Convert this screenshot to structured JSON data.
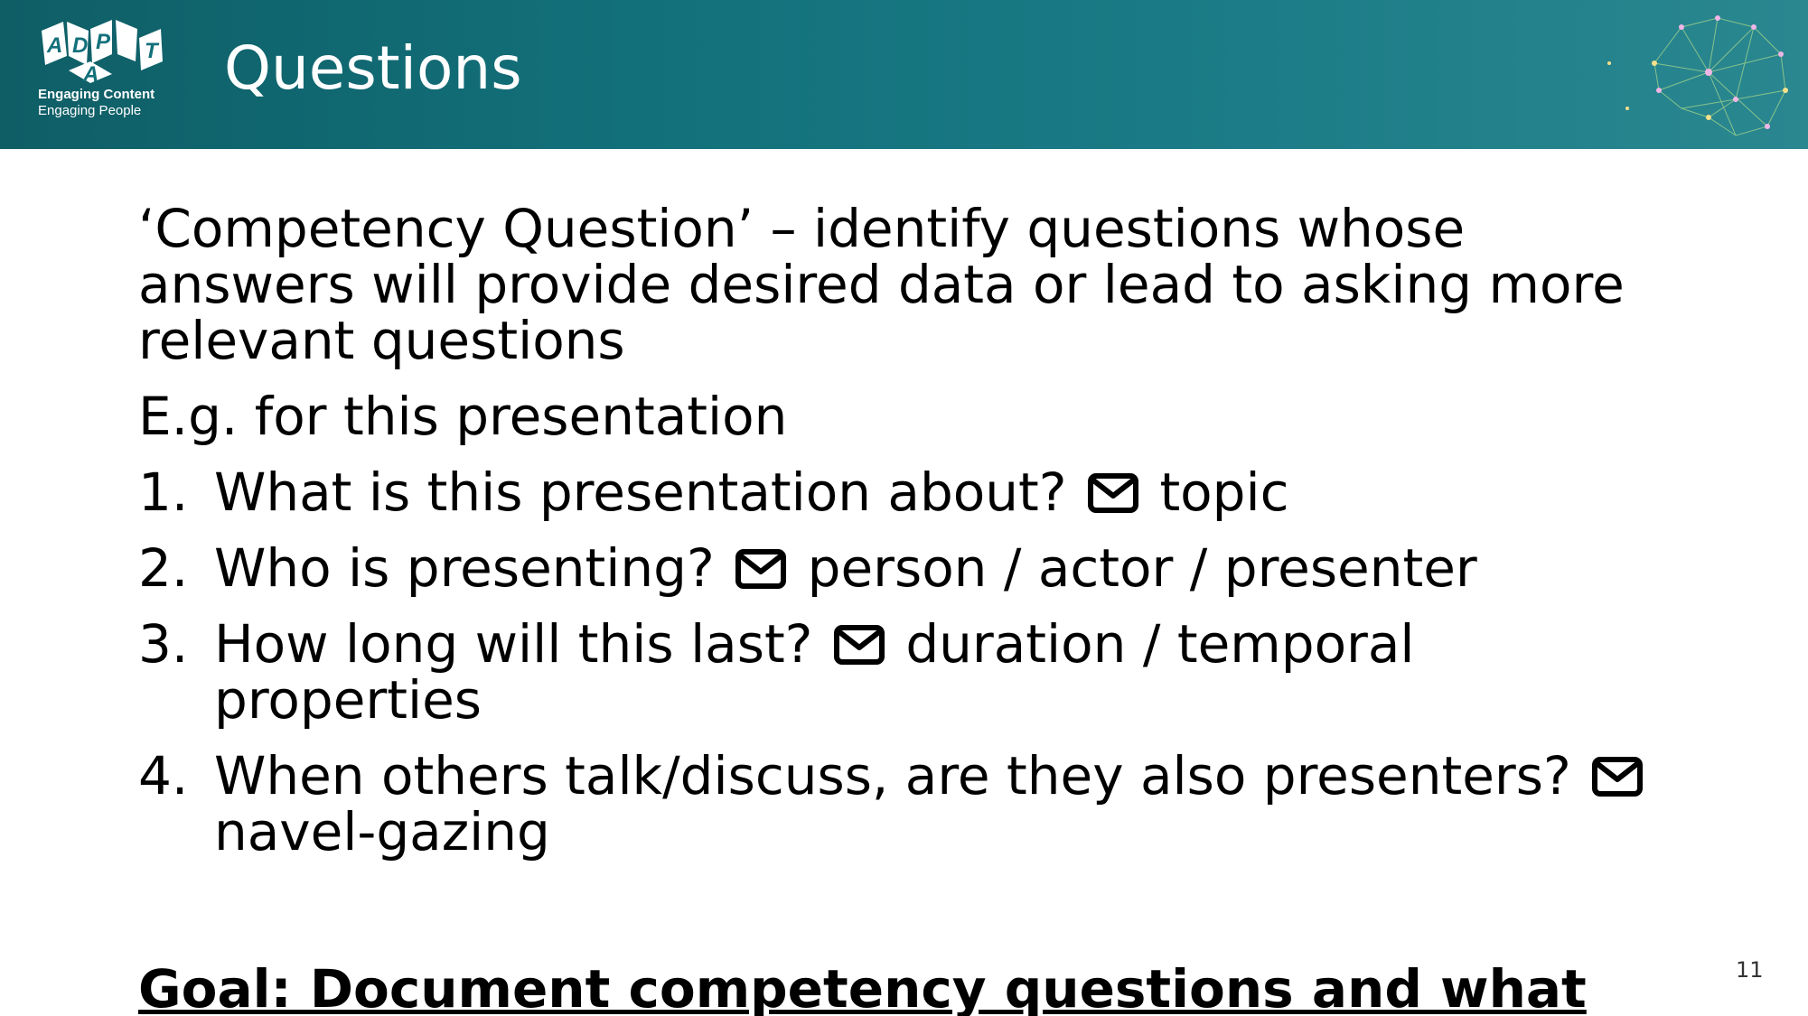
{
  "header": {
    "title": "Questions",
    "logo": {
      "letters": [
        "A",
        "D",
        "P",
        "A",
        "T"
      ],
      "tagline_1": "Engaging Content",
      "tagline_2": "Engaging People"
    },
    "background_color": "#12707a",
    "decoration_icon": "brain-network-icon"
  },
  "body": {
    "intro": "‘Competency Question’ – identify questions whose answers will provide desired data or lead to asking more relevant questions",
    "example_heading": "E.g. for this presentation",
    "items": [
      {
        "number": "1.",
        "question": "What is this presentation about?",
        "icon": "envelope-icon",
        "answer": "topic"
      },
      {
        "number": "2.",
        "question": "Who is presenting?",
        "icon": "envelope-icon",
        "answer": "person / actor / presenter"
      },
      {
        "number": "3.",
        "question": "How long will this last?",
        "icon": "envelope-icon",
        "answer": "duration / temporal properties"
      },
      {
        "number": "4.",
        "question": "When others talk/discuss, are they also presenters?",
        "icon": "envelope-icon",
        "answer": "navel-gazing"
      }
    ],
    "goal": "Goal: Document competency questions and what"
  },
  "footer": {
    "page_number": "11"
  }
}
